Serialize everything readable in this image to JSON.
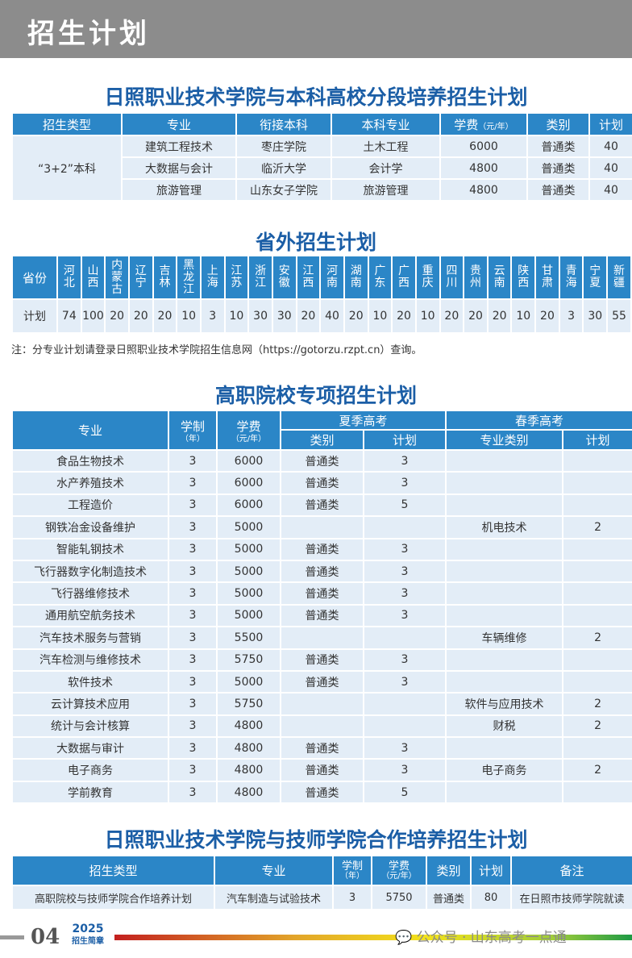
{
  "header": {
    "title": "招生计划"
  },
  "t1": {
    "title": "日照职业技术学院与本科高校分段培养招生计划",
    "headers": [
      "招生类型",
      "专业",
      "衔接本科",
      "本科专业",
      "学费",
      "类别",
      "计划"
    ],
    "fee_unit": "（元/年）",
    "type": "“3+2”本科",
    "rows": [
      [
        "建筑工程技术",
        "枣庄学院",
        "土木工程",
        "6000",
        "普通类",
        "40"
      ],
      [
        "大数据与会计",
        "临沂大学",
        "会计学",
        "4800",
        "普通类",
        "40"
      ],
      [
        "旅游管理",
        "山东女子学院",
        "旅游管理",
        "4800",
        "普通类",
        "40"
      ]
    ]
  },
  "t2": {
    "title": "省外招生计划",
    "row_label_province": "省份",
    "row_label_plan": "计划",
    "provinces": [
      "河北",
      "山西",
      "内蒙古",
      "辽宁",
      "吉林",
      "黑龙江",
      "上海",
      "江苏",
      "浙江",
      "安徽",
      "江西",
      "河南",
      "湖南",
      "广东",
      "广西",
      "重庆",
      "四川",
      "贵州",
      "云南",
      "陕西",
      "甘肃",
      "青海",
      "宁夏",
      "新疆"
    ],
    "plans": [
      "74",
      "100",
      "20",
      "20",
      "20",
      "10",
      "3",
      "10",
      "30",
      "30",
      "20",
      "40",
      "20",
      "10",
      "20",
      "10",
      "20",
      "20",
      "20",
      "10",
      "20",
      "3",
      "30",
      "55"
    ],
    "note": "注：分专业计划请登录日照职业技术学院招生信息网（https://gotorzu.rzpt.cn）查询。"
  },
  "t3": {
    "title": "高职院校专项招生计划",
    "headers": {
      "major": "专业",
      "years": "学制",
      "years_unit": "（年）",
      "fee": "学费",
      "fee_unit": "（元/年）",
      "summer": "夏季高考",
      "spring": "春季高考",
      "category": "类别",
      "plan": "计划",
      "major_category": "专业类别"
    },
    "rows": [
      [
        "食品生物技术",
        "3",
        "6000",
        "普通类",
        "3",
        "",
        ""
      ],
      [
        "水产养殖技术",
        "3",
        "6000",
        "普通类",
        "3",
        "",
        ""
      ],
      [
        "工程造价",
        "3",
        "6000",
        "普通类",
        "5",
        "",
        ""
      ],
      [
        "钢铁冶金设备维护",
        "3",
        "5000",
        "",
        "",
        "机电技术",
        "2"
      ],
      [
        "智能轧钢技术",
        "3",
        "5000",
        "普通类",
        "3",
        "",
        ""
      ],
      [
        "飞行器数字化制造技术",
        "3",
        "5000",
        "普通类",
        "3",
        "",
        ""
      ],
      [
        "飞行器维修技术",
        "3",
        "5000",
        "普通类",
        "3",
        "",
        ""
      ],
      [
        "通用航空航务技术",
        "3",
        "5000",
        "普通类",
        "3",
        "",
        ""
      ],
      [
        "汽车技术服务与营销",
        "3",
        "5500",
        "",
        "",
        "车辆维修",
        "2"
      ],
      [
        "汽车检测与维修技术",
        "3",
        "5750",
        "普通类",
        "3",
        "",
        ""
      ],
      [
        "软件技术",
        "3",
        "5000",
        "普通类",
        "3",
        "",
        ""
      ],
      [
        "云计算技术应用",
        "3",
        "5750",
        "",
        "",
        "软件与应用技术",
        "2"
      ],
      [
        "统计与会计核算",
        "3",
        "4800",
        "",
        "",
        "财税",
        "2"
      ],
      [
        "大数据与审计",
        "3",
        "4800",
        "普通类",
        "3",
        "",
        ""
      ],
      [
        "电子商务",
        "3",
        "4800",
        "普通类",
        "3",
        "电子商务",
        "2"
      ],
      [
        "学前教育",
        "3",
        "4800",
        "普通类",
        "5",
        "",
        ""
      ]
    ]
  },
  "t4": {
    "title": "日照职业技术学院与技师学院合作培养招生计划",
    "headers": {
      "type": "招生类型",
      "major": "专业",
      "years": "学制",
      "years_unit": "（年）",
      "fee": "学费",
      "fee_unit": "（元/年）",
      "category": "类别",
      "plan": "计划",
      "remark": "备注"
    },
    "row": [
      "高职院校与技师学院合作培养计划",
      "汽车制造与试验技术",
      "3",
      "5750",
      "普通类",
      "80",
      "在日照市技师学院就读"
    ]
  },
  "footer": {
    "page": "04",
    "logo_year": "2025",
    "logo_text": "招生简章",
    "watermark": "公众号 · 山东高考一点通"
  },
  "colors": {
    "header_blue": "#2b86c7",
    "cell_bg": "#e3edf7",
    "title_blue": "#1b5ea6"
  }
}
